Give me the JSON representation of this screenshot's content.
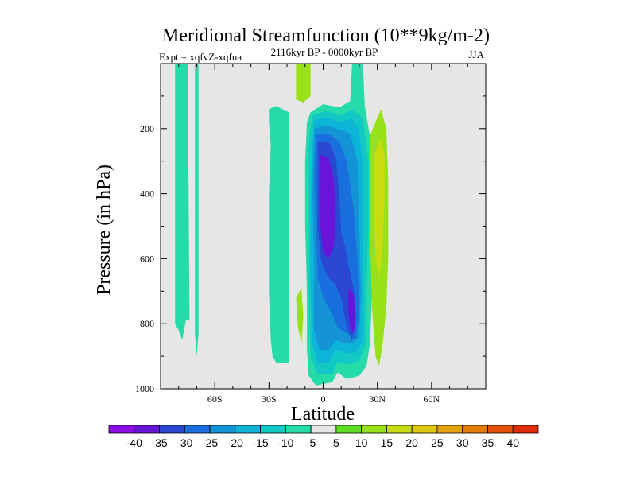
{
  "chart_data": {
    "type": "contour",
    "title": "Meridional Streamfunction (10**9kg/m-2)",
    "left_label": "Expt = xqfvZ-xqfua",
    "center_label": "2116kyr BP - 0000kyr BP",
    "right_label": "JJA",
    "xlabel": "Latitude",
    "ylabel": "Pressure (in hPa)",
    "xlim": [
      -90,
      90
    ],
    "ylim": [
      1000,
      0
    ],
    "x_ticks": [
      {
        "value": -60,
        "label": "60S"
      },
      {
        "value": -30,
        "label": "30S"
      },
      {
        "value": 0,
        "label": "0"
      },
      {
        "value": 30,
        "label": "30N"
      },
      {
        "value": 60,
        "label": "60N"
      }
    ],
    "y_ticks": [
      {
        "value": 200,
        "label": "200"
      },
      {
        "value": 400,
        "label": "400"
      },
      {
        "value": 600,
        "label": "600"
      },
      {
        "value": 800,
        "label": "800"
      },
      {
        "value": 1000,
        "label": "1000"
      }
    ],
    "background_color": "#e6e6e6",
    "colorbar": {
      "labels": [
        "-40",
        "-35",
        "-30",
        "-25",
        "-20",
        "-15",
        "-10",
        "-5",
        "5",
        "10",
        "15",
        "20",
        "25",
        "30",
        "35",
        "40"
      ],
      "colors": [
        "#8c10e6",
        "#6b14d9",
        "#2a48d2",
        "#1a6fde",
        "#1494d6",
        "#0cb4d8",
        "#12c8c4",
        "#25dca8",
        "#e6e6e6",
        "#5fdc24",
        "#98e018",
        "#c8dc10",
        "#e0c80e",
        "#e4a30c",
        "#e27d0a",
        "#e25208",
        "#de2c06"
      ]
    },
    "regions": [
      {
        "name": "sh-high-lat-band",
        "level": -5,
        "pts": [
          [
            -82,
            0
          ],
          [
            -75,
            0
          ],
          [
            -74,
            790
          ],
          [
            -76,
            790
          ],
          [
            -78,
            850
          ],
          [
            -80,
            820
          ],
          [
            -82,
            800
          ]
        ]
      },
      {
        "name": "sh-narrow-band",
        "level": -5,
        "pts": [
          [
            -71,
            0
          ],
          [
            -69,
            0
          ],
          [
            -69,
            830
          ],
          [
            -70,
            900
          ],
          [
            -71,
            830
          ]
        ]
      },
      {
        "name": "sh-subtropical-cell",
        "level": -5,
        "pts": [
          [
            -30,
            140
          ],
          [
            -26,
            130
          ],
          [
            -19,
            150
          ],
          [
            -19,
            920
          ],
          [
            -26,
            920
          ],
          [
            -28,
            900
          ],
          [
            -29,
            850
          ],
          [
            -30,
            700
          ],
          [
            -30,
            400
          ],
          [
            -29,
            250
          ],
          [
            -30,
            180
          ]
        ]
      },
      {
        "name": "nh-positive-strip-top",
        "level": 10,
        "pts": [
          [
            -15,
            0
          ],
          [
            -7,
            0
          ],
          [
            -7,
            100
          ],
          [
            -11,
            120
          ],
          [
            -15,
            110
          ]
        ]
      },
      {
        "name": "nh-positive-blob-low",
        "level": 10,
        "pts": [
          [
            -15,
            720
          ],
          [
            -12,
            690
          ],
          [
            -11,
            780
          ],
          [
            -12,
            860
          ],
          [
            -14,
            810
          ]
        ]
      },
      {
        "name": "cross-eq-outer",
        "level": -5,
        "pts": [
          [
            -7,
            150
          ],
          [
            0,
            125
          ],
          [
            9,
            135
          ],
          [
            15,
            115
          ],
          [
            16,
            0
          ],
          [
            22,
            0
          ],
          [
            23,
            130
          ],
          [
            27,
            260
          ],
          [
            28,
            500
          ],
          [
            27,
            700
          ],
          [
            26,
            860
          ],
          [
            24,
            930
          ],
          [
            20,
            960
          ],
          [
            13,
            970
          ],
          [
            8,
            950
          ],
          [
            5,
            980
          ],
          [
            -4,
            990
          ],
          [
            -8,
            960
          ],
          [
            -9,
            880
          ],
          [
            -9,
            700
          ],
          [
            -10,
            500
          ],
          [
            -10,
            300
          ],
          [
            -9,
            180
          ]
        ]
      },
      {
        "name": "cross-eq-a",
        "level": -10,
        "pts": [
          [
            -6,
            160
          ],
          [
            2,
            145
          ],
          [
            10,
            160
          ],
          [
            16,
            140
          ],
          [
            22,
            170
          ],
          [
            25,
            300
          ],
          [
            25,
            500
          ],
          [
            24,
            700
          ],
          [
            24,
            860
          ],
          [
            20,
            915
          ],
          [
            13,
            925
          ],
          [
            8,
            920
          ],
          [
            5,
            955
          ],
          [
            -3,
            955
          ],
          [
            -7,
            900
          ],
          [
            -8,
            700
          ],
          [
            -8,
            450
          ],
          [
            -8,
            250
          ]
        ]
      },
      {
        "name": "cross-eq-b",
        "level": -15,
        "pts": [
          [
            -5,
            175
          ],
          [
            2,
            165
          ],
          [
            10,
            180
          ],
          [
            16,
            170
          ],
          [
            20,
            210
          ],
          [
            22,
            320
          ],
          [
            22,
            520
          ],
          [
            22,
            700
          ],
          [
            22,
            850
          ],
          [
            18,
            890
          ],
          [
            12,
            890
          ],
          [
            7,
            880
          ],
          [
            3,
            920
          ],
          [
            -3,
            920
          ],
          [
            -6,
            860
          ],
          [
            -7,
            650
          ],
          [
            -7,
            400
          ],
          [
            -6,
            260
          ]
        ]
      },
      {
        "name": "cross-eq-c",
        "level": -20,
        "pts": [
          [
            -5,
            200
          ],
          [
            2,
            190
          ],
          [
            10,
            205
          ],
          [
            15,
            215
          ],
          [
            19,
            300
          ],
          [
            20,
            500
          ],
          [
            21,
            700
          ],
          [
            20,
            840
          ],
          [
            17,
            860
          ],
          [
            12,
            860
          ],
          [
            7,
            850
          ],
          [
            3,
            880
          ],
          [
            -2,
            880
          ],
          [
            -5,
            820
          ],
          [
            -5,
            600
          ],
          [
            -6,
            400
          ]
        ]
      },
      {
        "name": "cross-eq-d",
        "level": -25,
        "pts": [
          [
            -4,
            220
          ],
          [
            3,
            215
          ],
          [
            9,
            240
          ],
          [
            13,
            300
          ],
          [
            17,
            450
          ],
          [
            19,
            600
          ],
          [
            20,
            760
          ],
          [
            18,
            850
          ],
          [
            13,
            830
          ],
          [
            8,
            810
          ],
          [
            4,
            760
          ],
          [
            0,
            720
          ],
          [
            -3,
            660
          ],
          [
            -4,
            500
          ],
          [
            -5,
            350
          ]
        ]
      },
      {
        "name": "cross-eq-e",
        "level": -30,
        "pts": [
          [
            -3,
            240
          ],
          [
            3,
            240
          ],
          [
            7,
            290
          ],
          [
            9,
            400
          ],
          [
            10,
            520
          ],
          [
            12,
            560
          ],
          [
            14,
            620
          ],
          [
            17,
            700
          ],
          [
            18,
            790
          ],
          [
            16,
            850
          ],
          [
            13,
            810
          ],
          [
            10,
            720
          ],
          [
            7,
            680
          ],
          [
            3,
            660
          ],
          [
            -1,
            610
          ],
          [
            -3,
            500
          ],
          [
            -3,
            350
          ]
        ]
      },
      {
        "name": "core-upper",
        "level": -35,
        "pts": [
          [
            -2,
            280
          ],
          [
            3,
            290
          ],
          [
            6,
            360
          ],
          [
            7,
            460
          ],
          [
            6,
            560
          ],
          [
            3,
            600
          ],
          [
            0,
            580
          ],
          [
            -2,
            480
          ]
        ]
      },
      {
        "name": "core-lower",
        "level": -35,
        "pts": [
          [
            14,
            690
          ],
          [
            17,
            710
          ],
          [
            18,
            780
          ],
          [
            17,
            830
          ],
          [
            15,
            810
          ],
          [
            14,
            760
          ]
        ]
      },
      {
        "name": "nh-positive-cell",
        "level": 10,
        "pts": [
          [
            26,
            220
          ],
          [
            32,
            140
          ],
          [
            35,
            200
          ],
          [
            36,
            360
          ],
          [
            36,
            600
          ],
          [
            35,
            750
          ],
          [
            33,
            860
          ],
          [
            31,
            930
          ],
          [
            29,
            900
          ],
          [
            27,
            750
          ],
          [
            26,
            550
          ],
          [
            26,
            350
          ]
        ]
      },
      {
        "name": "nh-positive-core",
        "level": 15,
        "pts": [
          [
            28,
            280
          ],
          [
            32,
            230
          ],
          [
            34,
            280
          ],
          [
            34,
            400
          ],
          [
            33,
            560
          ],
          [
            31,
            660
          ],
          [
            29,
            600
          ],
          [
            28,
            450
          ]
        ]
      }
    ]
  }
}
